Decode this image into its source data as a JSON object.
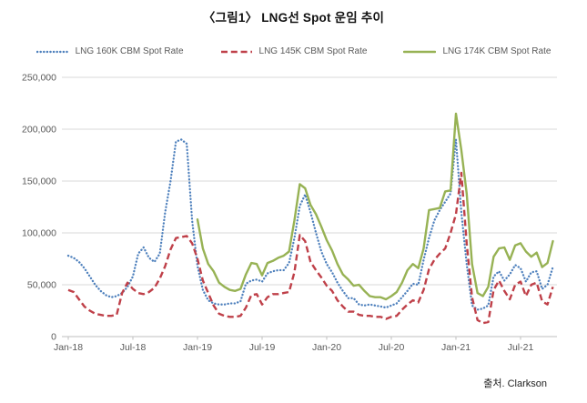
{
  "title": "〈그림1〉 LNG선 Spot 운임 추이",
  "source": "출처. Clarkson",
  "legend": {
    "items": [
      {
        "label": "LNG 160K CBM Spot Rate",
        "color": "#4f81bd",
        "style": "dotted"
      },
      {
        "label": "LNG 145K CBM Spot Rate",
        "color": "#bf4049",
        "style": "dashed"
      },
      {
        "label": "LNG 174K CBM Spot Rate",
        "color": "#97b254",
        "style": "solid"
      }
    ]
  },
  "chart_data": {
    "type": "line",
    "title": "〈그림1〉 LNG선 Spot 운임 추이",
    "xlabel": "",
    "ylabel": "",
    "x_start": "2018-01",
    "step_months": 0.5,
    "x_end": "2021-10",
    "ylim": [
      0,
      250000
    ],
    "grid": "horizontal",
    "legend_position": "top",
    "y_ticks": [
      {
        "value": 0,
        "label": "0"
      },
      {
        "value": 50000,
        "label": "50,000"
      },
      {
        "value": 100000,
        "label": "100,000"
      },
      {
        "value": 150000,
        "label": "150,000"
      },
      {
        "value": 200000,
        "label": "200,000"
      },
      {
        "value": 250000,
        "label": "250,000"
      }
    ],
    "x_ticks": [
      {
        "month_index": 0,
        "label": "Jan-18"
      },
      {
        "month_index": 6,
        "label": "Jul-18"
      },
      {
        "month_index": 12,
        "label": "Jan-19"
      },
      {
        "month_index": 18,
        "label": "Jul-19"
      },
      {
        "month_index": 24,
        "label": "Jan-20"
      },
      {
        "month_index": 30,
        "label": "Jul-20"
      },
      {
        "month_index": 36,
        "label": "Jan-21"
      },
      {
        "month_index": 42,
        "label": "Jul-21"
      }
    ],
    "series": [
      {
        "name": "LNG 160K CBM Spot Rate",
        "color": "#4f81bd",
        "dash": "dotted",
        "values": [
          78000,
          76000,
          72000,
          66000,
          58000,
          50000,
          44000,
          40000,
          38000,
          39000,
          42000,
          48000,
          58000,
          80000,
          86000,
          76000,
          72000,
          80000,
          120000,
          150000,
          188000,
          190000,
          186000,
          112000,
          68000,
          45000,
          35000,
          32000,
          31000,
          31000,
          32000,
          32000,
          34000,
          51000,
          54000,
          55000,
          53000,
          61000,
          63000,
          64000,
          64000,
          71000,
          95000,
          126000,
          137000,
          120000,
          100000,
          82000,
          70000,
          62000,
          52000,
          44000,
          37000,
          37000,
          31000,
          30000,
          31000,
          30000,
          29000,
          28000,
          30000,
          32000,
          38000,
          44000,
          51000,
          50000,
          74000,
          95000,
          112000,
          122000,
          130000,
          138000,
          190000,
          120000,
          70000,
          30000,
          26000,
          27000,
          30000,
          58000,
          63000,
          54000,
          60000,
          69000,
          66000,
          53000,
          62000,
          63000,
          46000,
          50000,
          67000
        ]
      },
      {
        "name": "LNG 145K CBM Spot Rate",
        "color": "#bf4049",
        "dash": "dashed",
        "values": [
          45000,
          43000,
          36000,
          29000,
          25000,
          22000,
          21000,
          20000,
          20000,
          21000,
          42000,
          52000,
          46000,
          42000,
          41000,
          43000,
          47000,
          56000,
          68000,
          84000,
          95000,
          96000,
          97000,
          90000,
          75000,
          54000,
          42000,
          30000,
          22000,
          20000,
          19000,
          19000,
          20000,
          28000,
          40000,
          41000,
          31000,
          38000,
          41000,
          41000,
          42000,
          43000,
          62000,
          98000,
          92000,
          72000,
          64000,
          57000,
          49000,
          44000,
          35000,
          29000,
          24000,
          24000,
          21000,
          20000,
          20000,
          19000,
          19000,
          17000,
          19000,
          20000,
          26000,
          31000,
          35000,
          33000,
          45000,
          65000,
          74000,
          80000,
          85000,
          100000,
          118000,
          158000,
          90000,
          38000,
          16000,
          13000,
          14000,
          45000,
          54000,
          44000,
          36000,
          50000,
          53000,
          39000,
          50000,
          52000,
          34000,
          31000,
          48000
        ]
      },
      {
        "name": "LNG 174K CBM Spot Rate",
        "color": "#97b254",
        "dash": "solid",
        "values": [
          null,
          null,
          null,
          null,
          null,
          null,
          null,
          null,
          null,
          null,
          null,
          null,
          null,
          null,
          null,
          null,
          null,
          null,
          null,
          null,
          null,
          null,
          null,
          null,
          113000,
          85000,
          70000,
          63000,
          52000,
          48000,
          45000,
          44000,
          46000,
          60000,
          71000,
          70000,
          59000,
          71000,
          73000,
          76000,
          78000,
          82000,
          112000,
          147000,
          143000,
          127000,
          118000,
          106000,
          93000,
          83000,
          70000,
          60000,
          55000,
          49000,
          50000,
          44000,
          39000,
          38000,
          38000,
          36000,
          39000,
          43000,
          52000,
          64000,
          70000,
          66000,
          85000,
          122000,
          123000,
          124000,
          140000,
          141000,
          215000,
          180000,
          138000,
          70000,
          42000,
          39000,
          48000,
          77000,
          85000,
          86000,
          74000,
          88000,
          90000,
          82000,
          77000,
          81000,
          67000,
          71000,
          92000
        ]
      }
    ]
  }
}
